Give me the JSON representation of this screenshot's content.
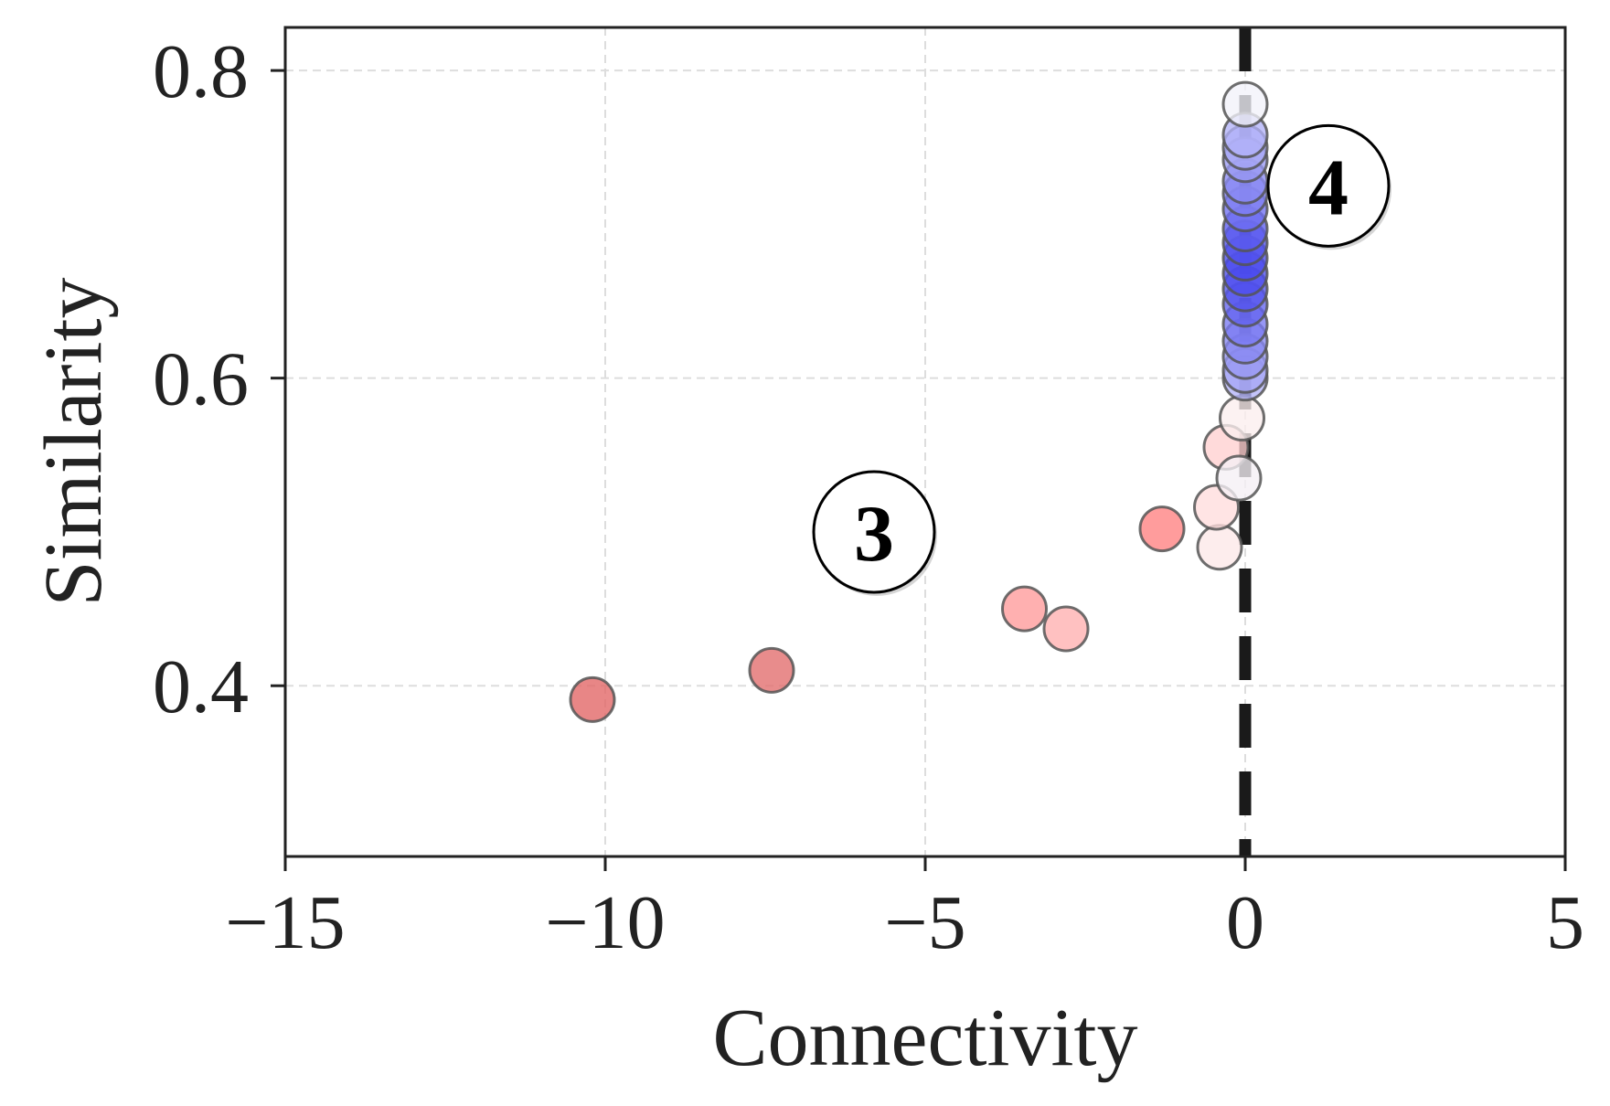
{
  "chart_data": {
    "type": "scatter",
    "title": "",
    "xlabel": "Connectivity",
    "ylabel": "Similarity",
    "xlim": [
      -15,
      5
    ],
    "ylim": [
      0.289,
      0.828
    ],
    "xticks": [
      -15,
      -10,
      -5,
      0,
      5
    ],
    "xtick_labels": [
      "−15",
      "−10",
      "−5",
      "0",
      "5"
    ],
    "yticks": [
      0.4,
      0.6,
      0.8
    ],
    "ytick_labels": [
      "0.4",
      "0.6",
      "0.8"
    ],
    "grid": true,
    "reference_line": {
      "x": 0,
      "style": "dashed"
    },
    "annotations": [
      {
        "text": "3",
        "x": -5.8,
        "y": 0.5
      },
      {
        "text": "4",
        "x": 1.3,
        "y": 0.725
      }
    ],
    "colors": {
      "negative": "#e05050",
      "positive": "#3b3bf0",
      "edge": "#555555",
      "reference": "#1a1a1a"
    },
    "points": [
      {
        "x": -10.2,
        "y": 0.391,
        "color": "#e26464"
      },
      {
        "x": -7.4,
        "y": 0.41,
        "color": "#e26b6b"
      },
      {
        "x": -3.45,
        "y": 0.45,
        "color": "#ff9a9a"
      },
      {
        "x": -2.8,
        "y": 0.437,
        "color": "#ffb0b0"
      },
      {
        "x": -1.3,
        "y": 0.502,
        "color": "#ff8080"
      },
      {
        "x": -0.4,
        "y": 0.49,
        "color": "#fde8e8"
      },
      {
        "x": -0.45,
        "y": 0.516,
        "color": "#ffdcdc"
      },
      {
        "x": -0.3,
        "y": 0.555,
        "color": "#ffd0d0"
      },
      {
        "x": -0.1,
        "y": 0.535,
        "color": "#f5f0f5"
      },
      {
        "x": -0.05,
        "y": 0.574,
        "color": "#fbeeee"
      },
      {
        "x": 0.0,
        "y": 0.6,
        "color": "#b4b4f8"
      },
      {
        "x": 0.0,
        "y": 0.605,
        "color": "#a6a6f6"
      },
      {
        "x": 0.0,
        "y": 0.614,
        "color": "#9898f4"
      },
      {
        "x": 0.0,
        "y": 0.624,
        "color": "#8888f2"
      },
      {
        "x": 0.0,
        "y": 0.635,
        "color": "#7a7af2"
      },
      {
        "x": 0.0,
        "y": 0.648,
        "color": "#6464f0"
      },
      {
        "x": 0.0,
        "y": 0.658,
        "color": "#5656ee"
      },
      {
        "x": 0.0,
        "y": 0.668,
        "color": "#4e4eee"
      },
      {
        "x": 0.0,
        "y": 0.678,
        "color": "#4a4aee"
      },
      {
        "x": 0.0,
        "y": 0.688,
        "color": "#5252ee"
      },
      {
        "x": 0.0,
        "y": 0.697,
        "color": "#5c5cf0"
      },
      {
        "x": 0.0,
        "y": 0.71,
        "color": "#7070f2"
      },
      {
        "x": 0.0,
        "y": 0.72,
        "color": "#8080f2"
      },
      {
        "x": 0.0,
        "y": 0.728,
        "color": "#8a8af4"
      },
      {
        "x": 0.0,
        "y": 0.742,
        "color": "#9a9af4"
      },
      {
        "x": 0.0,
        "y": 0.75,
        "color": "#a8a8f6"
      },
      {
        "x": 0.0,
        "y": 0.758,
        "color": "#b2b2f8"
      },
      {
        "x": 0.0,
        "y": 0.778,
        "color": "#f2f2fa"
      }
    ]
  }
}
